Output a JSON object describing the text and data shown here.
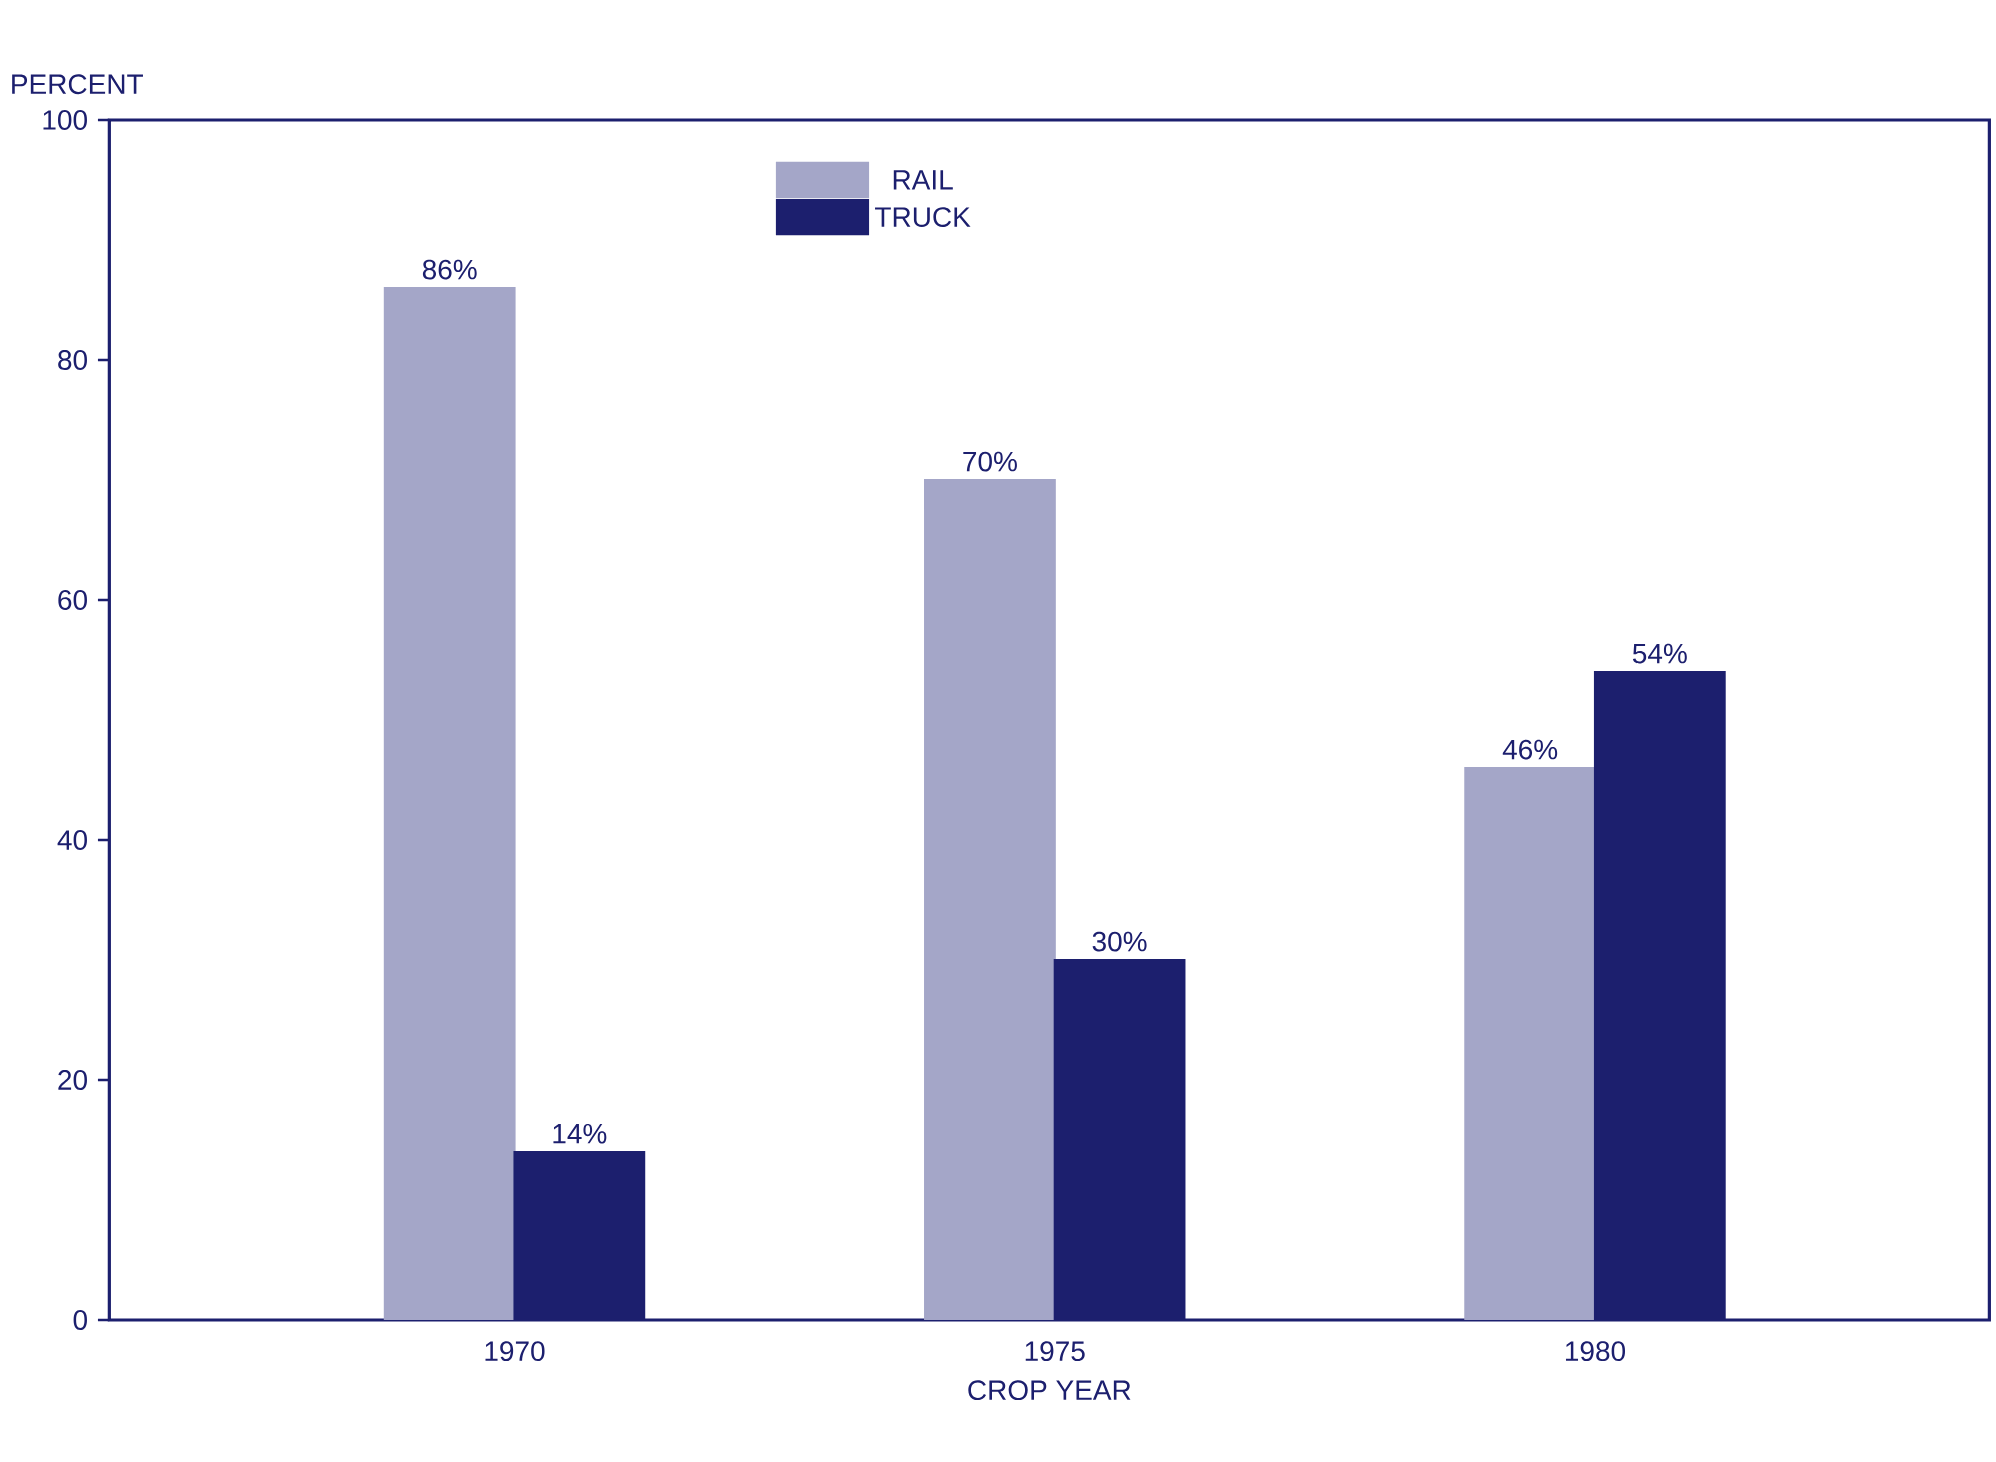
{
  "chart_data": {
    "type": "bar",
    "xlabel": "CROP YEAR",
    "ylabel": "PERCENT",
    "categories": [
      "1970",
      "1975",
      "1980"
    ],
    "series": [
      {
        "name": "RAIL",
        "color": "#a4a6c8",
        "values": [
          86,
          70,
          46
        ],
        "value_labels": [
          "86%",
          "70%",
          "46%"
        ]
      },
      {
        "name": "TRUCK",
        "color": "#1c1f6e",
        "values": [
          14,
          30,
          54
        ],
        "value_labels": [
          "14%",
          "30%",
          "54%"
        ]
      }
    ],
    "ylim": [
      0,
      100
    ],
    "yticks": [
      0,
      20,
      40,
      60,
      80,
      100
    ],
    "grid": false,
    "legend": "top"
  }
}
